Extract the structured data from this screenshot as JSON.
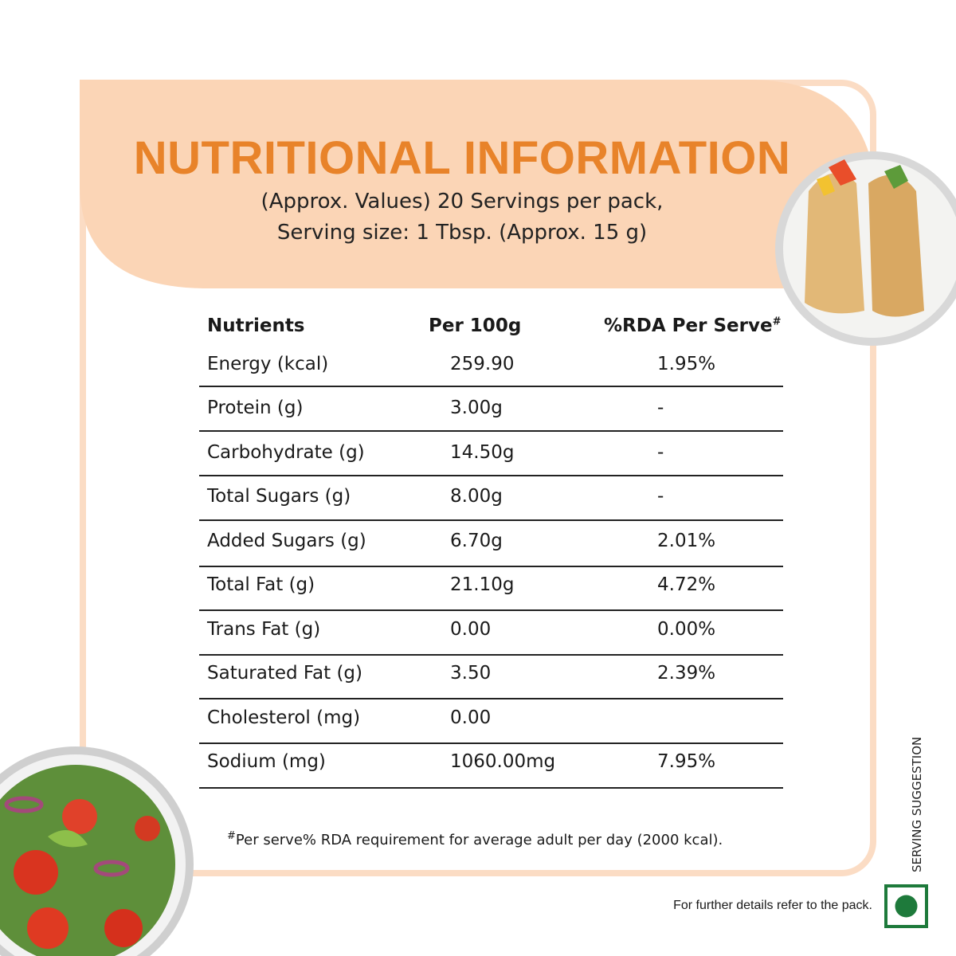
{
  "header": {
    "title": "NUTRITIONAL INFORMATION",
    "subtitle": [
      "(Approx. Values) 20 Servings per pack,",
      "Serving size: 1 Tbsp. (Approx. 15 g)"
    ]
  },
  "table": {
    "columns": [
      "Nutrients",
      "Per 100g",
      {
        "text": "%RDA Per Serve",
        "mark": "#"
      }
    ],
    "rows": [
      [
        "Energy (kcal)",
        "259.90",
        "1.95%"
      ],
      [
        "Protein (g)",
        "3.00g",
        "-"
      ],
      [
        "Carbohydrate (g)",
        "14.50g",
        "-"
      ],
      [
        "Total Sugars (g)",
        "8.00g",
        "-"
      ],
      [
        "Added Sugars (g)",
        "6.70g",
        "2.01%"
      ],
      [
        "Total Fat (g)",
        "21.10g",
        "4.72%"
      ],
      [
        "Trans Fat (g)",
        "0.00",
        "0.00%"
      ],
      [
        "Saturated Fat (g)",
        "3.50",
        "2.39%"
      ],
      [
        "Cholesterol (mg)",
        "0.00",
        null
      ],
      [
        "Sodium (mg)",
        "1060.00mg",
        "7.95%"
      ]
    ]
  },
  "footnote": {
    "mark": "#",
    "text": "Per serve% RDA requirement for average adult per day (2000 kcal)."
  },
  "side_label": "SERVING SUGGESTION",
  "footer": "For further details refer to the pack."
}
